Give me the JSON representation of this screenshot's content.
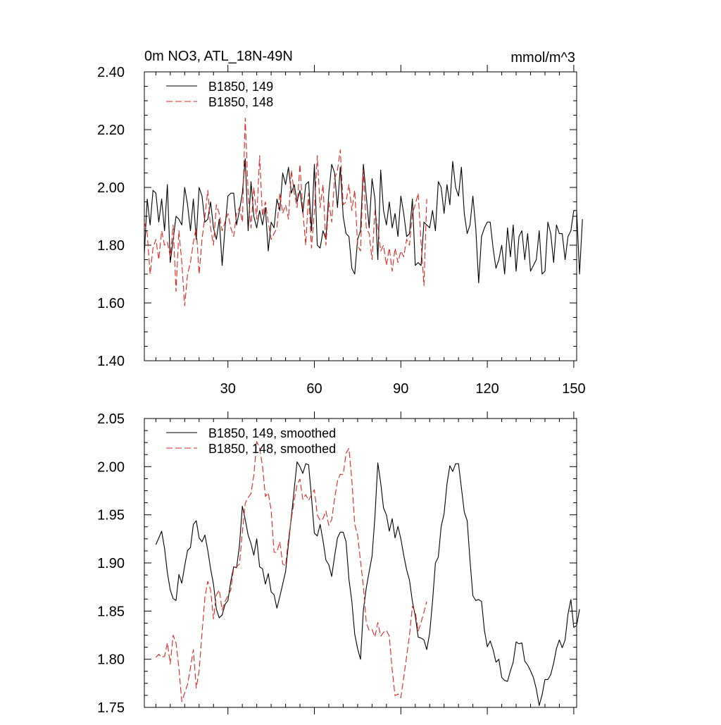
{
  "chart_data": [
    {
      "type": "line",
      "title": "0m NO3, ATL_18N-49N",
      "units": "mmol/m^3",
      "xlabel": "",
      "ylabel": "",
      "xlim": [
        1,
        151
      ],
      "ylim": [
        1.4,
        2.4
      ],
      "xticks": [
        30,
        60,
        90,
        120,
        150
      ],
      "xtick_labels": [
        "30",
        "60",
        "90",
        "120",
        "150"
      ],
      "yticks": [
        1.4,
        1.6,
        1.8,
        2.0,
        2.2,
        2.4
      ],
      "ytick_labels": [
        "1.40",
        "1.60",
        "1.80",
        "2.00",
        "2.20",
        "2.40"
      ],
      "grid": false,
      "legend_position": "top-left",
      "series": [
        {
          "name": "B1850, 149",
          "color": "#000000",
          "style": "solid",
          "x_start": 1,
          "values": [
            1.77,
            1.96,
            1.87,
            1.99,
            1.98,
            1.88,
            1.96,
            1.85,
            2.01,
            1.74,
            1.82,
            1.9,
            1.89,
            1.87,
            2.0,
            1.94,
            1.85,
            1.96,
            1.82,
            2.0,
            1.97,
            1.88,
            1.89,
            1.95,
            1.86,
            1.82,
            1.89,
            1.73,
            1.86,
            1.97,
            1.98,
            1.98,
            1.87,
            1.92,
            1.98,
            2.1,
            1.85,
            2.02,
            1.9,
            1.86,
            1.92,
            1.87,
            1.93,
            1.78,
            1.88,
            1.86,
            1.96,
            1.92,
            2.05,
            2.01,
            2.07,
            1.98,
            2.01,
            1.95,
            1.99,
            1.91,
            2.01,
            2.02,
            1.85,
            2.08,
            1.8,
            1.79,
            1.85,
            1.82,
            1.98,
            2.08,
            2.05,
            1.93,
            2.07,
            1.9,
            1.84,
            1.83,
            1.72,
            1.7,
            1.82,
            1.85,
            2.08,
            1.97,
            1.86,
            2.03,
            1.96,
            1.75,
            2.06,
            1.92,
            1.87,
            1.95,
            1.86,
            1.91,
            1.83,
            1.97,
            1.91,
            1.83,
            1.84,
            1.96,
            1.73,
            1.74,
            1.73,
            1.88,
            1.87,
            1.86,
            1.92,
            1.85,
            2.02,
            2.0,
            1.91,
            2.01,
            1.94,
            2.09,
            2.0,
            1.97,
            2.07,
            1.91,
            1.84,
            1.87,
            1.97,
            1.86,
            1.67,
            1.83,
            1.86,
            1.88,
            1.88,
            1.79,
            1.72,
            1.75,
            1.8,
            1.7,
            1.86,
            1.76,
            1.87,
            1.71,
            1.83,
            1.85,
            1.75,
            1.84,
            1.71,
            1.73,
            1.75,
            1.85,
            1.7,
            1.71,
            1.88,
            1.84,
            1.74,
            1.87,
            1.84,
            1.84,
            1.75,
            1.83,
            1.85,
            1.92,
            1.92,
            1.7,
            1.89
          ]
        },
        {
          "name": "B1850, 148",
          "color": "#e0241f",
          "style": "dashed",
          "x_start": 1,
          "values": [
            1.88,
            1.84,
            1.7,
            1.79,
            1.82,
            1.75,
            1.85,
            1.8,
            1.81,
            1.76,
            1.87,
            1.64,
            1.85,
            1.74,
            1.59,
            1.7,
            1.74,
            1.81,
            1.86,
            1.7,
            1.82,
            1.9,
            1.99,
            1.86,
            1.8,
            1.94,
            1.91,
            1.85,
            1.88,
            1.91,
            1.86,
            1.83,
            1.91,
            1.93,
            1.88,
            2.24,
            1.98,
            1.86,
            2.0,
            1.89,
            2.11,
            1.9,
            1.95,
            1.88,
            1.82,
            1.84,
            1.86,
            1.98,
            1.91,
            1.94,
            1.89,
            2.06,
            1.98,
            1.93,
            2.08,
            1.92,
            1.8,
            1.98,
            1.79,
            1.92,
            2.11,
            1.93,
            2.01,
            1.8,
            1.95,
            1.88,
            2.03,
            2.06,
            2.13,
            1.94,
            1.95,
            2.01,
            1.92,
            1.99,
            1.8,
            1.78,
            2.06,
            1.86,
            1.84,
            1.75,
            1.92,
            1.86,
            1.78,
            1.8,
            1.73,
            1.79,
            1.71,
            1.79,
            1.74,
            1.78,
            1.76,
            1.82,
            1.8,
            1.91,
            1.94,
            1.98,
            1.81,
            1.66,
            1.96
          ]
        }
      ]
    },
    {
      "type": "line",
      "title": "",
      "xlabel": "",
      "ylabel": "",
      "xlim": [
        1,
        151
      ],
      "ylim": [
        1.75,
        2.05
      ],
      "xticks": [
        30,
        60,
        90,
        120,
        150
      ],
      "xtick_labels": [],
      "yticks": [
        1.75,
        1.8,
        1.85,
        1.9,
        1.95,
        2.0,
        2.05
      ],
      "ytick_labels": [
        "1.75",
        "1.80",
        "1.85",
        "1.90",
        "1.95",
        "2.00",
        "2.05"
      ],
      "grid": false,
      "legend_position": "top-left",
      "series": [
        {
          "name": "B1850, 149, smoothed",
          "color": "#000000",
          "style": "solid",
          "x_start": 5,
          "values": [
            1.919,
            1.926,
            1.933,
            1.915,
            1.89,
            1.872,
            1.863,
            1.861,
            1.888,
            1.879,
            1.897,
            1.913,
            1.916,
            1.94,
            1.944,
            1.926,
            1.922,
            1.929,
            1.913,
            1.894,
            1.878,
            1.852,
            1.843,
            1.846,
            1.857,
            1.861,
            1.881,
            1.896,
            1.895,
            1.918,
            1.959,
            1.945,
            1.929,
            1.92,
            1.908,
            1.925,
            1.896,
            1.894,
            1.878,
            1.889,
            1.87,
            1.867,
            1.853,
            1.865,
            1.878,
            1.891,
            1.92,
            1.948,
            1.977,
            2.005,
            2.0,
            1.993,
            2.003,
            2.002,
            1.968,
            1.931,
            1.928,
            1.94,
            1.923,
            1.903,
            1.898,
            1.886,
            1.907,
            1.926,
            1.932,
            1.932,
            1.922,
            1.883,
            1.86,
            1.826,
            1.811,
            1.8,
            1.851,
            1.874,
            1.891,
            1.907,
            1.948,
            2.004,
            1.983,
            1.957,
            1.95,
            1.933,
            1.946,
            1.926,
            1.938,
            1.925,
            1.908,
            1.893,
            1.882,
            1.86,
            1.845,
            1.823,
            1.822,
            1.82,
            1.81,
            1.827,
            1.86,
            1.9,
            1.906,
            1.938,
            1.951,
            1.982,
            2.001,
            1.995,
            2.003,
            2.003,
            1.978,
            1.953,
            1.944,
            1.903,
            1.866,
            1.861,
            1.862,
            1.86,
            1.83,
            1.813,
            1.819,
            1.81,
            1.797,
            1.8,
            1.781,
            1.778,
            1.777,
            1.788,
            1.797,
            1.818,
            1.816,
            1.817,
            1.798,
            1.794,
            1.788,
            1.781,
            1.769,
            1.752,
            1.763,
            1.779,
            1.779,
            1.784,
            1.796,
            1.811,
            1.82,
            1.812,
            1.82,
            1.847,
            1.862,
            1.833,
            1.835,
            1.852
          ]
        },
        {
          "name": "B1850, 148, smoothed",
          "color": "#e0241f",
          "style": "dashed",
          "x_start": 5,
          "values": [
            1.802,
            1.805,
            1.802,
            1.803,
            1.817,
            1.795,
            1.825,
            1.817,
            1.791,
            1.756,
            1.765,
            1.774,
            1.791,
            1.81,
            1.77,
            1.788,
            1.827,
            1.864,
            1.881,
            1.872,
            1.842,
            1.867,
            1.872,
            1.851,
            1.86,
            1.866,
            1.872,
            1.895,
            1.896,
            1.899,
            1.932,
            1.962,
            1.968,
            1.972,
            1.991,
            2.026,
            2.019,
            2.001,
            1.969,
            1.973,
            1.955,
            1.911,
            1.911,
            1.922,
            1.899,
            1.897,
            1.925,
            1.946,
            1.965,
            1.981,
            1.987,
            1.966,
            1.971,
            1.965,
            1.971,
            1.976,
            1.95,
            1.944,
            1.946,
            1.954,
            1.939,
            1.945,
            1.967,
            1.985,
            1.992,
            1.992,
            2.014,
            2.019,
            1.986,
            1.94,
            1.929,
            1.902,
            1.876,
            1.838,
            1.83,
            1.831,
            1.823,
            1.838,
            1.824,
            1.828,
            1.83,
            1.824,
            1.789,
            1.762,
            1.764,
            1.76,
            1.781,
            1.803,
            1.825,
            1.855,
            1.849,
            1.829,
            1.838,
            1.849,
            1.86
          ]
        }
      ]
    }
  ]
}
